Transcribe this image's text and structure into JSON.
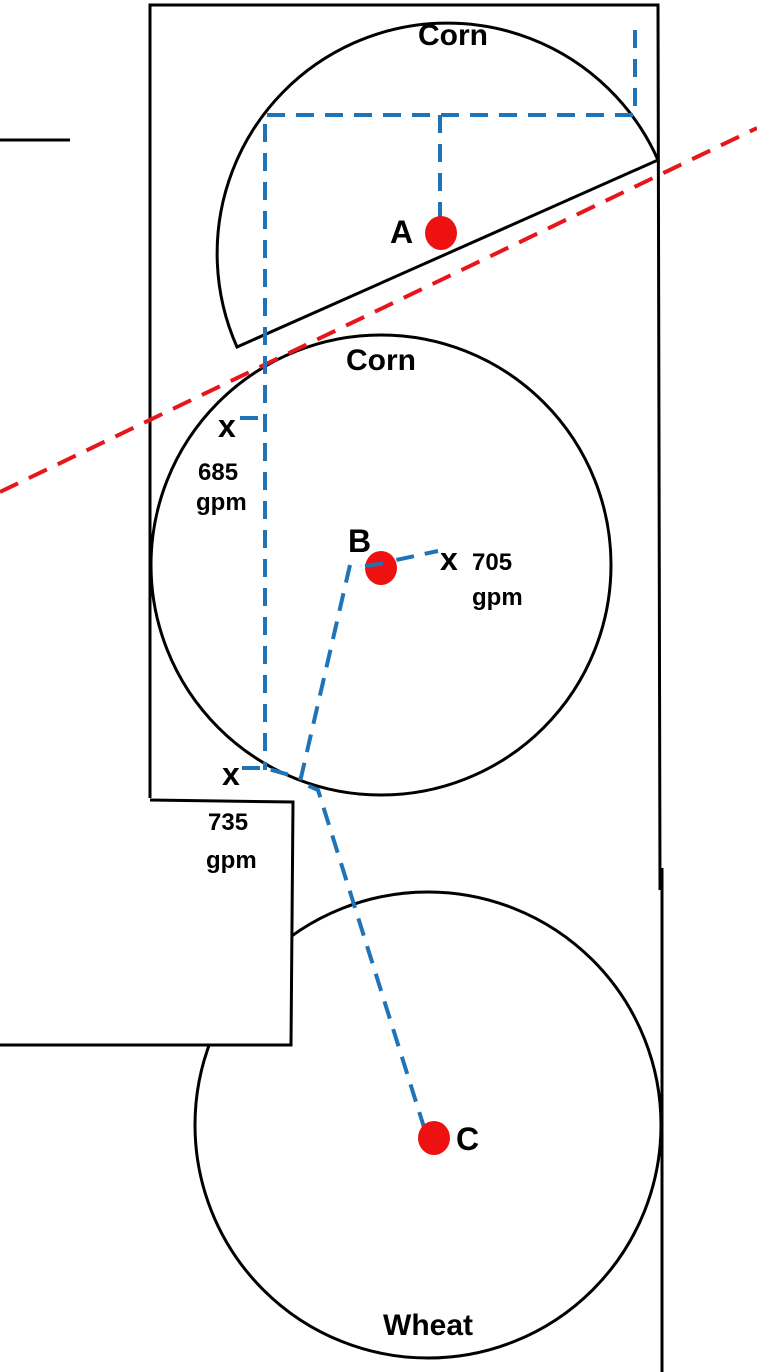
{
  "fields": [
    {
      "crop": "Corn"
    },
    {
      "crop": "Corn"
    },
    {
      "crop": "Wheat"
    }
  ],
  "pivots": [
    {
      "label": "A"
    },
    {
      "label": "B"
    },
    {
      "label": "C"
    }
  ],
  "wells": [
    {
      "marker": "x",
      "flow": "685",
      "unit": "gpm"
    },
    {
      "marker": "x",
      "flow": "705",
      "unit": "gpm"
    },
    {
      "marker": "x",
      "flow": "735",
      "unit": "gpm"
    }
  ]
}
